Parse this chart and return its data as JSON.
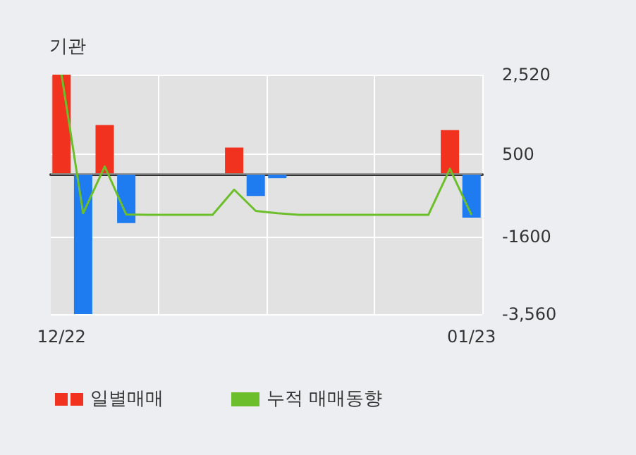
{
  "chart_data": {
    "type": "bar",
    "title": "기관",
    "categories": [
      "12/22",
      null,
      null,
      null,
      null,
      null,
      null,
      null,
      null,
      null,
      null,
      null,
      null,
      null,
      null,
      null,
      null,
      null,
      null,
      "01/23"
    ],
    "series": [
      {
        "name": "일별매매",
        "color": "#f0321e",
        "colors": [
          "#f0321e",
          "#1f7cf0",
          "#f0321e",
          "#1f7cf0",
          "#1f7cf0",
          "#1f7cf0",
          "#1f7cf0",
          "#1f7cf0",
          "#f0321e",
          "#1f7cf0",
          "#1f7cf0",
          "#1f7cf0",
          "#1f7cf0",
          "#1f7cf0",
          "#1f7cf0",
          "#1f7cf0",
          "#1f7cf0",
          "#1f7cf0",
          "#f0321e",
          "#1f7cf0"
        ],
        "values": [
          2520,
          -3560,
          1240,
          -1250,
          null,
          null,
          null,
          null,
          670,
          -560,
          -110,
          null,
          null,
          null,
          null,
          null,
          null,
          null,
          1110,
          -1110
        ]
      },
      {
        "name": "누적 매매동향",
        "type": "line",
        "color": "#6cbf2a",
        "values": [
          2520,
          -1000,
          190,
          -1030,
          -1040,
          -1040,
          -1040,
          -1040,
          -400,
          -940,
          -1000,
          -1040,
          -1040,
          -1040,
          -1040,
          -1040,
          -1040,
          -1040,
          130,
          -1040
        ]
      }
    ],
    "ylim": [
      -3560,
      2520
    ],
    "yticks": [
      {
        "value": 2520,
        "label": "2,520"
      },
      500,
      -1600,
      {
        "value": -3560,
        "label": "-3,560"
      }
    ],
    "ref_lines": [
      {
        "axis": "y",
        "value": 0,
        "color": "#8c8c8c"
      }
    ],
    "grid": true,
    "legend": "bottom",
    "marker": "none"
  }
}
